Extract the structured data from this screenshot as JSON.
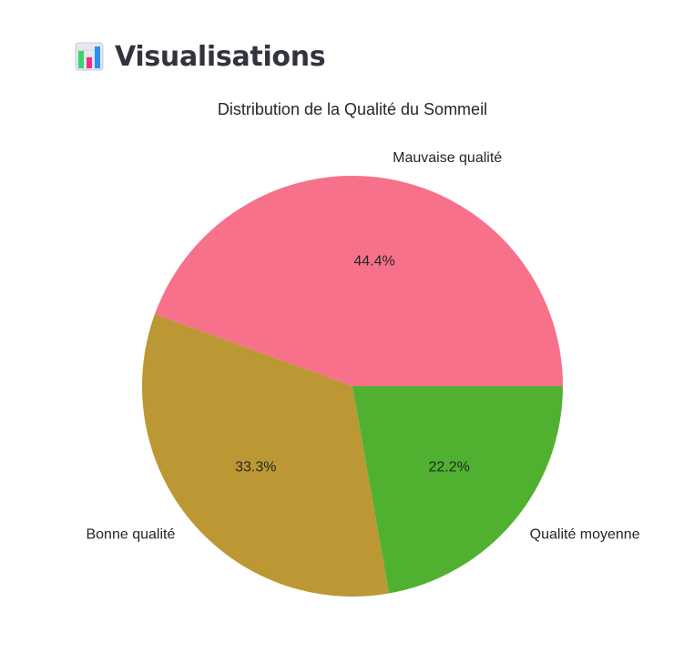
{
  "header": {
    "icon": "bar-chart-icon",
    "title": "Visualisations"
  },
  "colors": {
    "mauvaise": "#f7718a",
    "bonne": "#bb9833",
    "moyenne": "#50b131",
    "text": "#262626",
    "header_text": "#31333f"
  },
  "chart_data": {
    "type": "pie",
    "title": "Distribution de la Qualité du Sommeil",
    "labels": [
      "Mauvaise qualité",
      "Bonne qualité",
      "Qualité moyenne"
    ],
    "values": [
      44.4,
      33.3,
      22.2
    ],
    "percent_labels": [
      "44.4%",
      "33.3%",
      "22.2%"
    ],
    "colors": [
      "#f7718a",
      "#bb9833",
      "#50b131"
    ],
    "start_angle_deg": 0,
    "direction": "counterclockwise"
  }
}
